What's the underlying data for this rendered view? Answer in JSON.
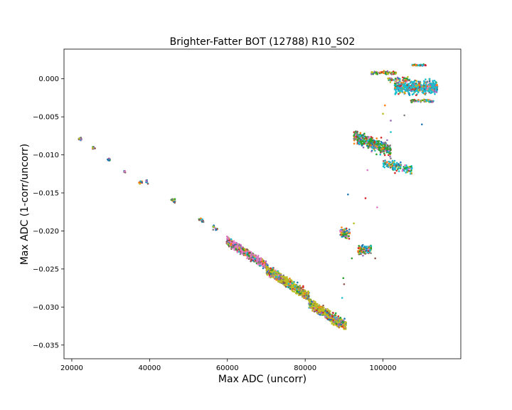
{
  "chart_data": {
    "type": "scatter",
    "title": "Brighter-Fatter BOT (12788) R10_S02",
    "xlabel": "Max ADC (uncorr)",
    "ylabel": "Max ADC (1-corr/uncorr)",
    "xlim": [
      18000,
      120000
    ],
    "ylim": [
      -0.0368,
      0.0039
    ],
    "xticks": [
      20000,
      40000,
      60000,
      80000,
      100000
    ],
    "xtick_labels": [
      "20000",
      "40000",
      "60000",
      "80000",
      "100000"
    ],
    "yticks": [
      0.0,
      -0.005,
      -0.01,
      -0.015,
      -0.02,
      -0.025,
      -0.03,
      -0.035
    ],
    "ytick_labels": [
      "0.000",
      "−0.005",
      "−0.010",
      "−0.015",
      "−0.020",
      "−0.025",
      "−0.030",
      "−0.035"
    ],
    "grid": false,
    "legend": "none",
    "marker_size": 2,
    "palette": [
      "#1f77b4",
      "#ff7f0e",
      "#2ca02c",
      "#d62728",
      "#9467bd",
      "#8c564b",
      "#e377c2",
      "#7f7f7f",
      "#bcbd22",
      "#17becf"
    ],
    "clusters": [
      {
        "x_range": [
          21800,
          22500
        ],
        "y_center": -0.0079,
        "y_spread": 0.0002,
        "n": 14,
        "slope": -1e-07,
        "color_weights": [
          1,
          1,
          1,
          1,
          1,
          1,
          1,
          1,
          1,
          1
        ]
      },
      {
        "x_range": [
          25400,
          26000
        ],
        "y_center": -0.0091,
        "y_spread": 0.0002,
        "n": 10,
        "slope": -1e-07,
        "color_weights": [
          1,
          1,
          1,
          1,
          1,
          1,
          1,
          1,
          1,
          1
        ]
      },
      {
        "x_range": [
          29200,
          29800
        ],
        "y_center": -0.0106,
        "y_spread": 0.0002,
        "n": 10,
        "slope": -1e-07,
        "color_weights": [
          1,
          1,
          1,
          1,
          1,
          1,
          1,
          1,
          1,
          1
        ]
      },
      {
        "x_range": [
          33400,
          33800
        ],
        "y_center": -0.0122,
        "y_spread": 0.0001,
        "n": 8,
        "slope": -1e-07,
        "color_weights": [
          1,
          1,
          1,
          1,
          1,
          1,
          1,
          1,
          1,
          1
        ]
      },
      {
        "x_range": [
          37200,
          38100
        ],
        "y_center": -0.0136,
        "y_spread": 0.0002,
        "n": 10,
        "slope": -1e-07,
        "color_weights": [
          1,
          1,
          1,
          1,
          1,
          1,
          1,
          1,
          1,
          1
        ]
      },
      {
        "x_range": [
          39000,
          39700
        ],
        "y_center": -0.0135,
        "y_spread": 0.0003,
        "n": 8,
        "slope": -2e-07,
        "color_weights": [
          1,
          1,
          1,
          1,
          1,
          1,
          1,
          1,
          1,
          1
        ]
      },
      {
        "x_range": [
          45300,
          46600
        ],
        "y_center": -0.0159,
        "y_spread": 0.0003,
        "n": 14,
        "slope": -3e-07,
        "color_weights": [
          1,
          1,
          1,
          1,
          1,
          1,
          1,
          1,
          1,
          1
        ]
      },
      {
        "x_range": [
          52700,
          54000
        ],
        "y_center": -0.0186,
        "y_spread": 0.0003,
        "n": 14,
        "slope": -3e-07,
        "color_weights": [
          1,
          1,
          1,
          1,
          1,
          1,
          1,
          1,
          1,
          1
        ]
      },
      {
        "x_range": [
          56200,
          57400
        ],
        "y_center": -0.0196,
        "y_spread": 0.0003,
        "n": 14,
        "slope": -3e-07,
        "color_weights": [
          1,
          1,
          1,
          1,
          1,
          1,
          1,
          1,
          1,
          1
        ]
      },
      {
        "x_range": [
          59800,
          70000
        ],
        "y_center": -0.0229,
        "y_spread": 0.0005,
        "n": 700,
        "slope": -3.2e-07,
        "color_weights": [
          1,
          1,
          2,
          1,
          1,
          1,
          8,
          1,
          1,
          1
        ]
      },
      {
        "x_range": [
          70000,
          81000
        ],
        "y_center": -0.0268,
        "y_spread": 0.0006,
        "n": 800,
        "slope": -3.2e-07,
        "color_weights": [
          1,
          1,
          1,
          1,
          1,
          1,
          1,
          1,
          8,
          1
        ]
      },
      {
        "x_range": [
          81000,
          90500
        ],
        "y_center": -0.031,
        "y_spread": 0.0006,
        "n": 800,
        "slope": -3.2e-07,
        "color_weights": [
          1,
          1,
          1,
          1,
          1,
          1,
          1,
          1,
          8,
          1
        ]
      },
      {
        "x_range": [
          89000,
          91500
        ],
        "y_center": -0.0203,
        "y_spread": 0.0006,
        "n": 80,
        "slope": 0,
        "color_weights": [
          2,
          1,
          2,
          1,
          1,
          1,
          1,
          1,
          3,
          2
        ]
      },
      {
        "x_range": [
          93500,
          97000
        ],
        "y_center": -0.0225,
        "y_spread": 0.0006,
        "n": 90,
        "slope": 0,
        "color_weights": [
          1,
          1,
          4,
          1,
          1,
          1,
          1,
          1,
          1,
          4
        ]
      },
      {
        "x_range": [
          92500,
          102000
        ],
        "y_center": -0.0085,
        "y_spread": 0.0008,
        "n": 450,
        "slope": -2e-07,
        "color_weights": [
          2,
          1,
          6,
          1,
          1,
          1,
          1,
          1,
          1,
          3
        ]
      },
      {
        "x_range": [
          100000,
          107500
        ],
        "y_center": -0.0115,
        "y_spread": 0.0006,
        "n": 140,
        "slope": -1e-07,
        "color_weights": [
          1,
          1,
          2,
          1,
          1,
          1,
          2,
          1,
          1,
          6
        ]
      },
      {
        "x_range": [
          97000,
          103500
        ],
        "y_center": 0.0008,
        "y_spread": 0.0002,
        "n": 70,
        "slope": 0,
        "color_weights": [
          1,
          1,
          6,
          1,
          1,
          1,
          1,
          1,
          4,
          1
        ]
      },
      {
        "x_range": [
          101000,
          106500
        ],
        "y_center": -0.0001,
        "y_spread": 0.0003,
        "n": 50,
        "slope": 0,
        "color_weights": [
          1,
          1,
          3,
          1,
          1,
          1,
          1,
          1,
          4,
          1
        ]
      },
      {
        "x_range": [
          103000,
          114000
        ],
        "y_center": -0.0011,
        "y_spread": 0.0008,
        "n": 550,
        "slope": 0,
        "color_weights": [
          1,
          1,
          1,
          1,
          1,
          1,
          1,
          1,
          2,
          14
        ]
      },
      {
        "x_range": [
          107000,
          113000
        ],
        "y_center": -0.0029,
        "y_spread": 0.0002,
        "n": 60,
        "slope": 0,
        "color_weights": [
          1,
          1,
          2,
          1,
          1,
          1,
          1,
          1,
          3,
          3
        ]
      },
      {
        "x_range": [
          107500,
          111000
        ],
        "y_center": 0.0018,
        "y_spread": 0.0001,
        "n": 40,
        "slope": 0,
        "color_weights": [
          1,
          1,
          1,
          1,
          1,
          1,
          1,
          1,
          1,
          6
        ]
      }
    ],
    "outliers": [
      {
        "x": 91000,
        "y": -0.0152
      },
      {
        "x": 95500,
        "y": -0.0157
      },
      {
        "x": 98500,
        "y": -0.0169
      },
      {
        "x": 89500,
        "y": -0.0288
      },
      {
        "x": 89800,
        "y": -0.0262
      },
      {
        "x": 90000,
        "y": -0.027
      },
      {
        "x": 100000,
        "y": -0.0046
      },
      {
        "x": 100500,
        "y": -0.0035
      },
      {
        "x": 102000,
        "y": -0.0055
      },
      {
        "x": 105500,
        "y": -0.0048
      },
      {
        "x": 110000,
        "y": -0.006
      },
      {
        "x": 104000,
        "y": -0.002
      },
      {
        "x": 96000,
        "y": -0.012
      },
      {
        "x": 102000,
        "y": -0.007
      },
      {
        "x": 92000,
        "y": -0.0236
      },
      {
        "x": 98000,
        "y": -0.0236
      },
      {
        "x": 92500,
        "y": -0.019
      }
    ]
  }
}
